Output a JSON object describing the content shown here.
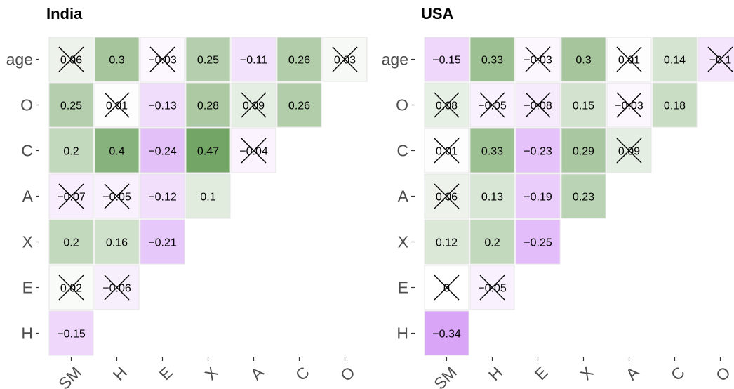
{
  "chart_data": [
    {
      "type": "heatmap",
      "title": "India",
      "rows": [
        "age",
        "O",
        "C",
        "A",
        "X",
        "E",
        "H"
      ],
      "cols": [
        "SM",
        "H",
        "E",
        "X",
        "A",
        "C",
        "O"
      ],
      "cells": [
        {
          "row": "age",
          "col": "SM",
          "label": "0.06",
          "value": 0.06,
          "crossed": true
        },
        {
          "row": "age",
          "col": "H",
          "label": "0.3",
          "value": 0.3,
          "crossed": false
        },
        {
          "row": "age",
          "col": "E",
          "label": "−0.03",
          "value": -0.03,
          "crossed": true
        },
        {
          "row": "age",
          "col": "X",
          "label": "0.25",
          "value": 0.25,
          "crossed": false
        },
        {
          "row": "age",
          "col": "A",
          "label": "−0.11",
          "value": -0.11,
          "crossed": false
        },
        {
          "row": "age",
          "col": "C",
          "label": "0.26",
          "value": 0.26,
          "crossed": false
        },
        {
          "row": "age",
          "col": "O",
          "label": "0.03",
          "value": 0.03,
          "crossed": true
        },
        {
          "row": "O",
          "col": "SM",
          "label": "0.25",
          "value": 0.25,
          "crossed": false
        },
        {
          "row": "O",
          "col": "H",
          "label": "0.01",
          "value": 0.01,
          "crossed": true
        },
        {
          "row": "O",
          "col": "E",
          "label": "−0.13",
          "value": -0.13,
          "crossed": false
        },
        {
          "row": "O",
          "col": "X",
          "label": "0.28",
          "value": 0.28,
          "crossed": false
        },
        {
          "row": "O",
          "col": "A",
          "label": "0.09",
          "value": 0.09,
          "crossed": true
        },
        {
          "row": "O",
          "col": "C",
          "label": "0.26",
          "value": 0.26,
          "crossed": false
        },
        {
          "row": "C",
          "col": "SM",
          "label": "0.2",
          "value": 0.2,
          "crossed": false
        },
        {
          "row": "C",
          "col": "H",
          "label": "0.4",
          "value": 0.4,
          "crossed": false
        },
        {
          "row": "C",
          "col": "E",
          "label": "−0.24",
          "value": -0.24,
          "crossed": false
        },
        {
          "row": "C",
          "col": "X",
          "label": "0.47",
          "value": 0.47,
          "crossed": false
        },
        {
          "row": "C",
          "col": "A",
          "label": "−0.04",
          "value": -0.04,
          "crossed": true
        },
        {
          "row": "A",
          "col": "SM",
          "label": "−0.07",
          "value": -0.07,
          "crossed": true
        },
        {
          "row": "A",
          "col": "H",
          "label": "−0.05",
          "value": -0.05,
          "crossed": true
        },
        {
          "row": "A",
          "col": "E",
          "label": "−0.12",
          "value": -0.12,
          "crossed": false
        },
        {
          "row": "A",
          "col": "X",
          "label": "0.1",
          "value": 0.1,
          "crossed": false
        },
        {
          "row": "X",
          "col": "SM",
          "label": "0.2",
          "value": 0.2,
          "crossed": false
        },
        {
          "row": "X",
          "col": "H",
          "label": "0.16",
          "value": 0.16,
          "crossed": false
        },
        {
          "row": "X",
          "col": "E",
          "label": "−0.21",
          "value": -0.21,
          "crossed": false
        },
        {
          "row": "E",
          "col": "SM",
          "label": "0.02",
          "value": 0.02,
          "crossed": true
        },
        {
          "row": "E",
          "col": "H",
          "label": "−0.06",
          "value": -0.06,
          "crossed": true
        },
        {
          "row": "H",
          "col": "SM",
          "label": "−0.15",
          "value": -0.15,
          "crossed": false
        }
      ]
    },
    {
      "type": "heatmap",
      "title": "USA",
      "rows": [
        "age",
        "O",
        "C",
        "A",
        "X",
        "E",
        "H"
      ],
      "cols": [
        "SM",
        "H",
        "E",
        "X",
        "A",
        "C",
        "O"
      ],
      "cells": [
        {
          "row": "age",
          "col": "SM",
          "label": "−0.15",
          "value": -0.15,
          "crossed": false
        },
        {
          "row": "age",
          "col": "H",
          "label": "0.33",
          "value": 0.33,
          "crossed": false
        },
        {
          "row": "age",
          "col": "E",
          "label": "−0.03",
          "value": -0.03,
          "crossed": true
        },
        {
          "row": "age",
          "col": "X",
          "label": "0.3",
          "value": 0.3,
          "crossed": false
        },
        {
          "row": "age",
          "col": "A",
          "label": "0.01",
          "value": 0.01,
          "crossed": true
        },
        {
          "row": "age",
          "col": "C",
          "label": "0.14",
          "value": 0.14,
          "crossed": false
        },
        {
          "row": "age",
          "col": "O",
          "label": "−0.1",
          "value": -0.1,
          "crossed": true
        },
        {
          "row": "O",
          "col": "SM",
          "label": "0.08",
          "value": 0.08,
          "crossed": true
        },
        {
          "row": "O",
          "col": "H",
          "label": "−0.05",
          "value": -0.05,
          "crossed": true
        },
        {
          "row": "O",
          "col": "E",
          "label": "−0.08",
          "value": -0.08,
          "crossed": true
        },
        {
          "row": "O",
          "col": "X",
          "label": "0.15",
          "value": 0.15,
          "crossed": false
        },
        {
          "row": "O",
          "col": "A",
          "label": "−0.03",
          "value": -0.03,
          "crossed": true
        },
        {
          "row": "O",
          "col": "C",
          "label": "0.18",
          "value": 0.18,
          "crossed": false
        },
        {
          "row": "C",
          "col": "SM",
          "label": "0.01",
          "value": 0.01,
          "crossed": true
        },
        {
          "row": "C",
          "col": "H",
          "label": "0.33",
          "value": 0.33,
          "crossed": false
        },
        {
          "row": "C",
          "col": "E",
          "label": "−0.23",
          "value": -0.23,
          "crossed": false
        },
        {
          "row": "C",
          "col": "X",
          "label": "0.29",
          "value": 0.29,
          "crossed": false
        },
        {
          "row": "C",
          "col": "A",
          "label": "0.09",
          "value": 0.09,
          "crossed": true
        },
        {
          "row": "A",
          "col": "SM",
          "label": "0.06",
          "value": 0.06,
          "crossed": true
        },
        {
          "row": "A",
          "col": "H",
          "label": "0.13",
          "value": 0.13,
          "crossed": false
        },
        {
          "row": "A",
          "col": "E",
          "label": "−0.19",
          "value": -0.19,
          "crossed": false
        },
        {
          "row": "A",
          "col": "X",
          "label": "0.23",
          "value": 0.23,
          "crossed": false
        },
        {
          "row": "X",
          "col": "SM",
          "label": "0.12",
          "value": 0.12,
          "crossed": false
        },
        {
          "row": "X",
          "col": "H",
          "label": "0.2",
          "value": 0.2,
          "crossed": false
        },
        {
          "row": "X",
          "col": "E",
          "label": "−0.25",
          "value": -0.25,
          "crossed": false
        },
        {
          "row": "E",
          "col": "SM",
          "label": "0",
          "value": 0,
          "crossed": true
        },
        {
          "row": "E",
          "col": "H",
          "label": "−0.05",
          "value": -0.05,
          "crossed": true
        },
        {
          "row": "H",
          "col": "SM",
          "label": "−0.34",
          "value": -0.34,
          "crossed": false
        }
      ]
    }
  ],
  "colors": {
    "positive": "#6a9f5c",
    "negative": "#c77bf2",
    "neutral": "#ffffff",
    "cell_border": "#e4e4e4",
    "cross": "#000000"
  }
}
